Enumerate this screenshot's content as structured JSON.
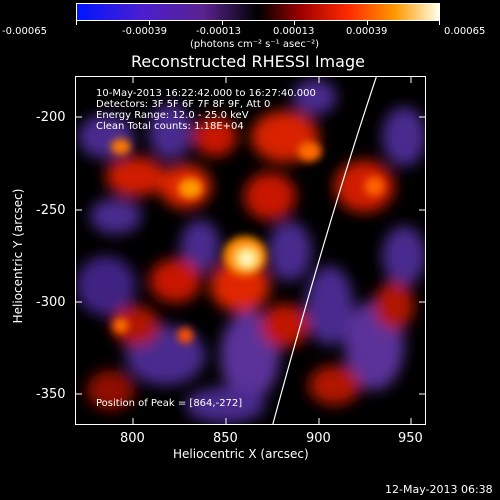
{
  "colorbar": {
    "tick_labels": [
      "-0.00065",
      "-0.00039",
      "-0.00013",
      "0.00013",
      "0.00039",
      "0.00065"
    ],
    "unit_label": "(photons cm⁻² s⁻¹ asec⁻²)"
  },
  "title": "Reconstructed RHESSI Image",
  "annotations": {
    "time_range": "10-May-2013 16:22:42.000 to 16:27:40.000",
    "detectors": "Detectors: 3F 5F 6F 7F 8F 9F, Att 0",
    "energy_range": "Energy Range: 12.0 - 25.0 keV",
    "clean_counts": "Clean    Total counts: 1.18E+04",
    "peak_position": "Position of Peak = [864,-272]"
  },
  "axes": {
    "ylabel": "Heliocentric Y (arcsec)",
    "xlabel": "Heliocentric X (arcsec)",
    "yticks": [
      "-200",
      "-250",
      "-300",
      "-350"
    ],
    "xticks": [
      "800",
      "850",
      "900",
      "950"
    ]
  },
  "footer": "12-May-2013 06:38",
  "colors": {
    "background": "#000000",
    "negative": "#3a1b8c",
    "neutral": "#000000",
    "positive": "#ff4a00",
    "peak": "#fff3a0"
  }
}
